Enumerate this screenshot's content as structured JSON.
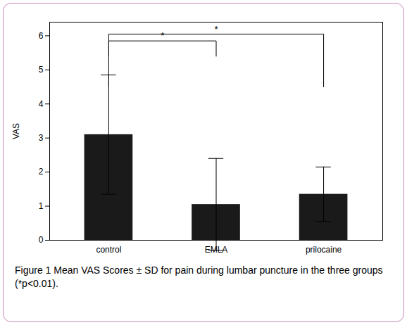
{
  "chart_data": {
    "type": "bar",
    "categories": [
      "control",
      "EMLA",
      "prilocaine"
    ],
    "values": [
      3.1,
      1.05,
      1.35
    ],
    "errors": [
      1.75,
      1.35,
      0.8
    ],
    "color": "#1a1a1a",
    "ylabel": "VAS",
    "ylim": [
      0,
      6.4
    ],
    "yticks": [
      0,
      1,
      2,
      3,
      4,
      5,
      6
    ],
    "annotations": [
      {
        "x1": "control",
        "x2": "EMLA",
        "y_top": 5.85,
        "y_drop": 0.45,
        "label": "*"
      },
      {
        "x1": "control",
        "x2": "prilocaine",
        "y_top": 6.05,
        "y_drop": 1.55,
        "label": "*"
      }
    ],
    "caption": "Figure 1 Mean VAS Scores ± SD for pain during lumbar puncture in the three groups (*p<0.01)."
  }
}
